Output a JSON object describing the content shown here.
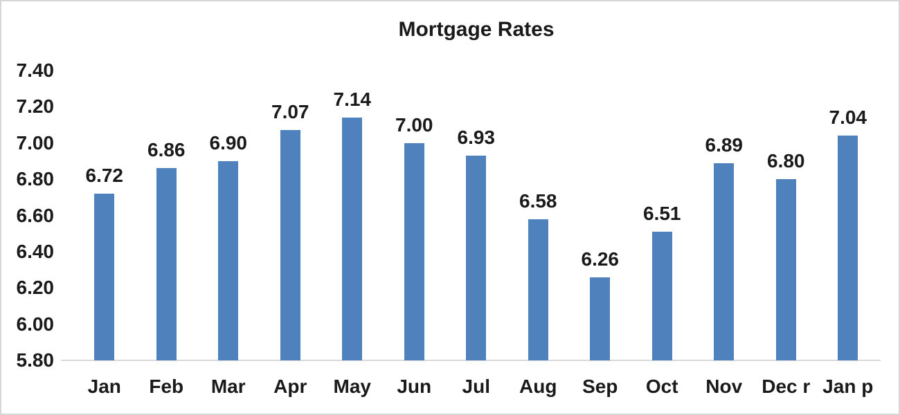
{
  "chart_data": {
    "type": "bar",
    "title": "Mortgage Rates",
    "categories": [
      "Jan",
      "Feb",
      "Mar",
      "Apr",
      "May",
      "Jun",
      "Jul",
      "Aug",
      "Sep",
      "Oct",
      "Nov",
      "Dec r",
      "Jan p"
    ],
    "values": [
      6.72,
      6.86,
      6.9,
      7.07,
      7.14,
      7.0,
      6.93,
      6.58,
      6.26,
      6.51,
      6.89,
      6.8,
      7.04
    ],
    "value_labels": [
      "6.72",
      "6.86",
      "6.90",
      "7.07",
      "7.14",
      "7.00",
      "6.93",
      "6.58",
      "6.26",
      "6.51",
      "6.89",
      "6.80",
      "7.04"
    ],
    "xlabel": "",
    "ylabel": "",
    "ylim": [
      5.8,
      7.4
    ],
    "y_ticks": [
      "7.40",
      "7.20",
      "7.00",
      "6.80",
      "6.60",
      "6.40",
      "6.20",
      "6.00",
      "5.80"
    ],
    "y_tick_values": [
      7.4,
      7.2,
      7.0,
      6.8,
      6.6,
      6.4,
      6.2,
      6.0,
      5.8
    ],
    "grid": false,
    "legend": false,
    "bar_color": "#4f81bd",
    "axis_line_color": "#d9d9d9",
    "text_color": "#1a1a1a",
    "background_color": "#ffffff",
    "frame_border_color": "#d6d6d6"
  }
}
